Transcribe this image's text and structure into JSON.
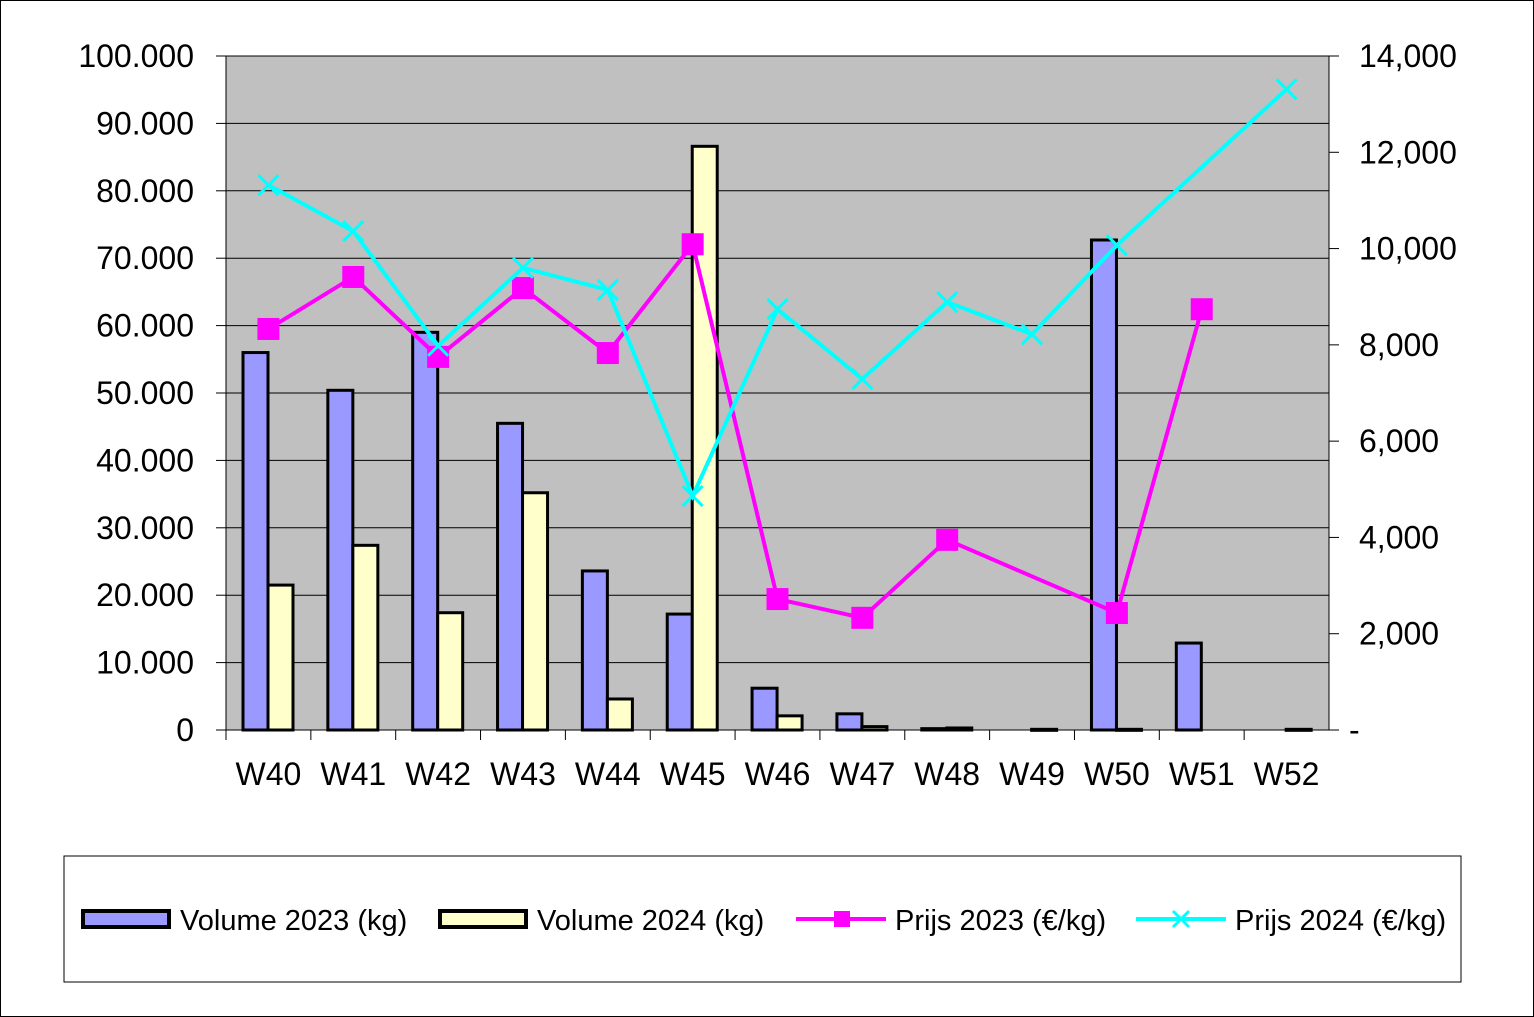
{
  "chart_data": {
    "type": "bar",
    "categories": [
      "W40",
      "W41",
      "W42",
      "W43",
      "W44",
      "W45",
      "W46",
      "W47",
      "W48",
      "W49",
      "W50",
      "W51",
      "W52"
    ],
    "series": [
      {
        "name": "Volume 2023 (kg)",
        "kind": "bar",
        "axis": "left",
        "color": "#9999FF",
        "values": [
          56000,
          50400,
          59000,
          45500,
          23600,
          17200,
          6200,
          2400,
          200,
          null,
          72700,
          12900,
          null
        ]
      },
      {
        "name": "Volume 2024 (kg)",
        "kind": "bar",
        "axis": "left",
        "color": "#FFFFCC",
        "values": [
          21500,
          27400,
          17400,
          35200,
          4600,
          86600,
          2100,
          500,
          300,
          100,
          100,
          null,
          100
        ]
      },
      {
        "name": "Prijs 2023 (€/kg)",
        "kind": "line",
        "marker": "square",
        "axis": "right",
        "color": "#FF00FF",
        "values": [
          8330,
          9410,
          7750,
          9180,
          7830,
          10090,
          2720,
          2330,
          3950,
          null,
          2430,
          8740,
          null
        ]
      },
      {
        "name": "Prijs 2024 (€/kg)",
        "kind": "line",
        "marker": "x",
        "axis": "right",
        "color": "#00FFFF",
        "values": [
          11320,
          10360,
          7980,
          9600,
          9140,
          4860,
          8740,
          7290,
          8890,
          8220,
          10070,
          null,
          13310
        ]
      }
    ],
    "left_axis": {
      "ylim": [
        0,
        100000
      ],
      "ticks": [
        "0",
        "10.000",
        "20.000",
        "30.000",
        "40.000",
        "50.000",
        "60.000",
        "70.000",
        "80.000",
        "90.000",
        "100.000"
      ]
    },
    "right_axis": {
      "ylim": [
        0,
        14000
      ],
      "ticks": [
        "-",
        "2,000",
        "4,000",
        "6,000",
        "8,000",
        "10,000",
        "12,000",
        "14,000"
      ]
    },
    "grid": true,
    "plot_background": "#C0C0C0",
    "legend_position": "bottom",
    "title": "",
    "xlabel": "",
    "ylabel": ""
  }
}
